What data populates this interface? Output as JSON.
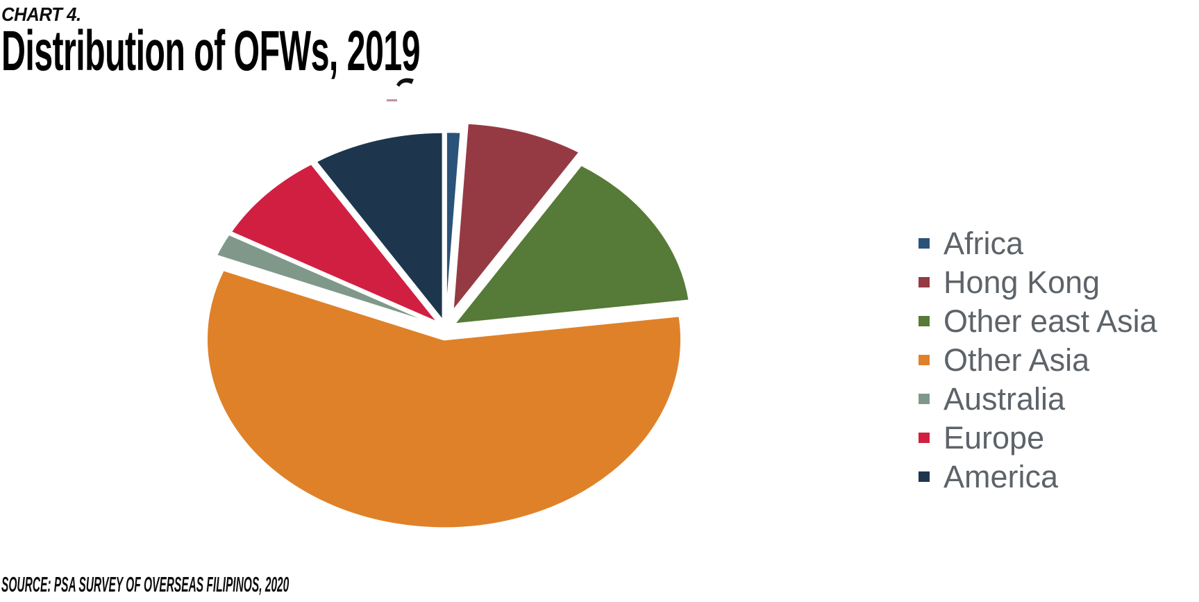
{
  "header": {
    "chart_label": "CHART 4.",
    "title": "Distribution of OFWs, 2019"
  },
  "footer": {
    "source": "SOURCE: PSA SURVEY OF OVERSEAS FILIPINOS, 2020"
  },
  "legend": {
    "position": "right",
    "text_color": "#5d6369"
  },
  "chart_data": {
    "type": "pie",
    "title": "Distribution of OFWs, 2019",
    "unit": "percent of OFWs (estimated from slice angles; no data labels shown)",
    "values_are_estimates": true,
    "start_angle_deg": 0,
    "direction": "clockwise",
    "exploded": true,
    "legend_position": "right",
    "categories": [
      "Africa",
      "Hong Kong",
      "Other east Asia",
      "Other Asia",
      "Australia",
      "Europe",
      "America"
    ],
    "values": [
      1,
      8,
      14,
      58,
      2,
      8,
      9
    ],
    "colors": [
      "#2b5379",
      "#953a43",
      "#567a37",
      "#df8129",
      "#80988a",
      "#d11f42",
      "#1d364e"
    ],
    "separator_color": "#ffffff"
  }
}
